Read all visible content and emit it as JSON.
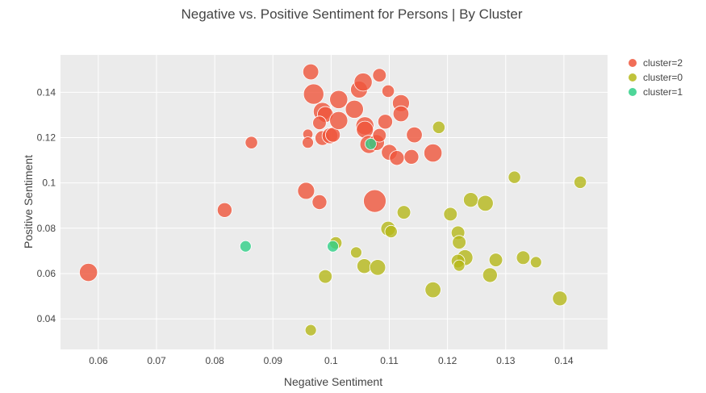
{
  "chart_data": {
    "type": "scatter",
    "title": "Negative vs. Positive Sentiment for Persons | By Cluster",
    "xlabel": "Negative Sentiment",
    "ylabel": "Positive Sentiment",
    "xlim": [
      0.0535,
      0.1475
    ],
    "ylim": [
      0.0265,
      0.1565
    ],
    "x_ticks": [
      0.06,
      0.07,
      0.08,
      0.09,
      0.1,
      0.11,
      0.12,
      0.13,
      0.14
    ],
    "x_tick_labels": [
      "0.06",
      "0.07",
      "0.08",
      "0.09",
      "0.1",
      "0.11",
      "0.12",
      "0.13",
      "0.14"
    ],
    "y_ticks": [
      0.04,
      0.06,
      0.08,
      0.1,
      0.12,
      0.14
    ],
    "y_tick_labels": [
      "0.04",
      "0.06",
      "0.08",
      "0.1",
      "0.12",
      "0.14"
    ],
    "grid": true,
    "legend_position": "top-right",
    "series": [
      {
        "name": "cluster=2",
        "color": "#ef553b",
        "points": [
          [
            0.0965,
            0.149,
            1.4
          ],
          [
            0.097,
            0.1392,
            1.8
          ],
          [
            0.0985,
            0.1315,
            1.6
          ],
          [
            0.099,
            0.1302,
            1.4
          ],
          [
            0.098,
            0.1265,
            1.2
          ],
          [
            0.096,
            0.1215,
            0.9
          ],
          [
            0.096,
            0.1178,
            1.0
          ],
          [
            0.0985,
            0.1198,
            1.3
          ],
          [
            0.0998,
            0.1208,
            1.4
          ],
          [
            0.1003,
            0.1212,
            1.3
          ],
          [
            0.1013,
            0.1368,
            1.6
          ],
          [
            0.1013,
            0.1275,
            1.6
          ],
          [
            0.104,
            0.1325,
            1.6
          ],
          [
            0.1048,
            0.1412,
            1.5
          ],
          [
            0.1055,
            0.1445,
            1.6
          ],
          [
            0.1058,
            0.1252,
            1.6
          ],
          [
            0.1058,
            0.1235,
            1.5
          ],
          [
            0.1065,
            0.117,
            1.6
          ],
          [
            0.1078,
            0.1178,
            1.4
          ],
          [
            0.1083,
            0.1475,
            1.2
          ],
          [
            0.1083,
            0.121,
            1.2
          ],
          [
            0.1093,
            0.127,
            1.3
          ],
          [
            0.1098,
            0.1405,
            1.1
          ],
          [
            0.11,
            0.1135,
            1.4
          ],
          [
            0.1113,
            0.111,
            1.3
          ],
          [
            0.112,
            0.1352,
            1.5
          ],
          [
            0.112,
            0.1305,
            1.4
          ],
          [
            0.1138,
            0.1115,
            1.3
          ],
          [
            0.1143,
            0.1212,
            1.4
          ],
          [
            0.1175,
            0.1132,
            1.6
          ],
          [
            0.1075,
            0.092,
            2.0
          ],
          [
            0.0957,
            0.0965,
            1.5
          ],
          [
            0.098,
            0.0915,
            1.3
          ],
          [
            0.0863,
            0.1178,
            1.1
          ],
          [
            0.0817,
            0.088,
            1.3
          ],
          [
            0.0583,
            0.0605,
            1.6
          ]
        ]
      },
      {
        "name": "cluster=0",
        "color": "#b5b819",
        "points": [
          [
            0.1185,
            0.1245,
            1.1
          ],
          [
            0.1315,
            0.1025,
            1.1
          ],
          [
            0.1428,
            0.1003,
            1.1
          ],
          [
            0.124,
            0.0925,
            1.3
          ],
          [
            0.1265,
            0.091,
            1.4
          ],
          [
            0.1205,
            0.0862,
            1.2
          ],
          [
            0.1125,
            0.087,
            1.2
          ],
          [
            0.1098,
            0.0798,
            1.3
          ],
          [
            0.1103,
            0.0785,
            1.1
          ],
          [
            0.1218,
            0.078,
            1.2
          ],
          [
            0.122,
            0.0738,
            1.2
          ],
          [
            0.1008,
            0.0735,
            1.1
          ],
          [
            0.1043,
            0.0693,
            1.0
          ],
          [
            0.123,
            0.067,
            1.4
          ],
          [
            0.1218,
            0.0655,
            1.2
          ],
          [
            0.122,
            0.0635,
            1.0
          ],
          [
            0.1283,
            0.066,
            1.2
          ],
          [
            0.133,
            0.067,
            1.2
          ],
          [
            0.1352,
            0.065,
            1.0
          ],
          [
            0.1057,
            0.0633,
            1.3
          ],
          [
            0.108,
            0.0627,
            1.4
          ],
          [
            0.1273,
            0.0593,
            1.3
          ],
          [
            0.099,
            0.0587,
            1.2
          ],
          [
            0.1175,
            0.0528,
            1.4
          ],
          [
            0.1393,
            0.049,
            1.3
          ],
          [
            0.0965,
            0.035,
            1.0
          ]
        ]
      },
      {
        "name": "cluster=1",
        "color": "#2fcf87",
        "points": [
          [
            0.1068,
            0.1172,
            1.0
          ],
          [
            0.1003,
            0.072,
            1.0
          ],
          [
            0.0853,
            0.072,
            1.0
          ]
        ]
      }
    ]
  }
}
